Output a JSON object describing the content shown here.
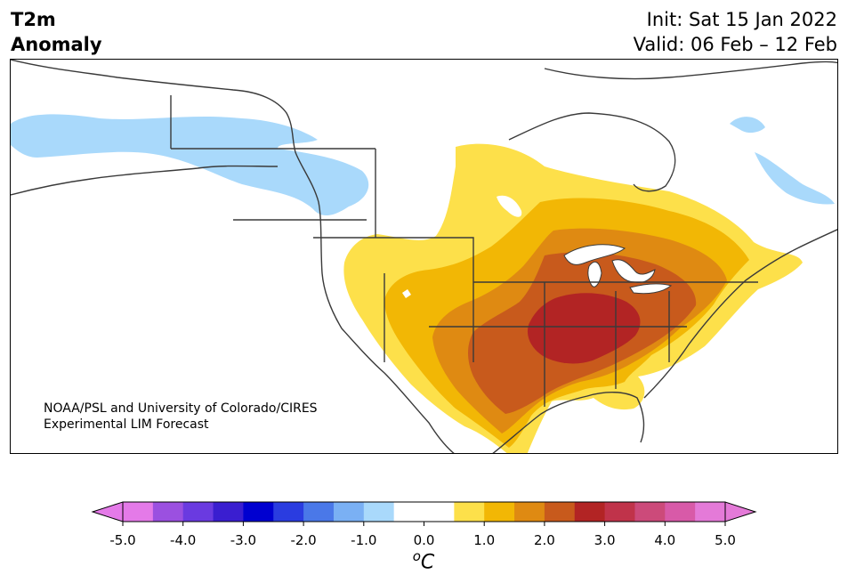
{
  "header": {
    "title_line1": "T2m",
    "title_line2": "Anomaly",
    "init": "Init: Sat 15 Jan 2022",
    "valid": "Valid: 06 Feb – 12 Feb"
  },
  "map": {
    "credit_line1": "NOAA/PSL and University of Colorado/CIRES",
    "credit_line2": "Experimental LIM Forecast",
    "colors": {
      "cold_1": "#a9d9fb",
      "warm_1": "#fde04a",
      "warm_2": "#f2b705",
      "warm_3": "#df8a12",
      "warm_4": "#c85a1c",
      "warm_5": "#b22424",
      "coast": "#3a3a3a"
    }
  },
  "colorbar": {
    "unit_base": "C",
    "unit_sup": "o",
    "ticks": [
      "-5.0",
      "-4.0",
      "-3.0",
      "-2.0",
      "-1.0",
      "0.0",
      "1.0",
      "2.0",
      "3.0",
      "4.0",
      "5.0"
    ],
    "colors": [
      "#e47ae8",
      "#9b50e0",
      "#6a3ae0",
      "#3a1ed0",
      "#0000d0",
      "#2a3ce0",
      "#4a78e8",
      "#7ab0f4",
      "#a9d9fb",
      "#ffffff",
      "#ffffff",
      "#fde04a",
      "#f2b705",
      "#df8a12",
      "#c85a1c",
      "#b22424",
      "#c0334a",
      "#cc4a7a",
      "#d85aa8",
      "#e47ad8"
    ],
    "extend_low_color": "#e47ae8",
    "extend_high_color": "#e47ad8"
  }
}
